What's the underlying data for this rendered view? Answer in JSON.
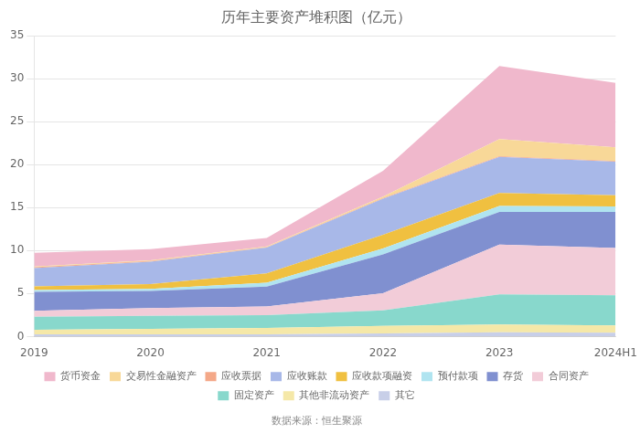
{
  "chart_data": {
    "type": "area",
    "title": "历年主要资产堆积图（亿元）",
    "annotations": [
      "数据来源：恒生聚源"
    ],
    "categories": [
      "2019",
      "2020",
      "2021",
      "2022",
      "2023",
      "2024H1"
    ],
    "series": [
      {
        "name": "其它",
        "color": "#c8cfe8",
        "values": [
          0.25,
          0.25,
          0.25,
          0.35,
          0.5,
          0.45
        ]
      },
      {
        "name": "其他非流动资产",
        "color": "#f5e8a8",
        "values": [
          0.55,
          0.65,
          0.75,
          0.9,
          0.9,
          0.85
        ]
      },
      {
        "name": "固定资产",
        "color": "#88d8cc",
        "values": [
          1.5,
          1.5,
          1.5,
          1.8,
          3.5,
          3.5
        ]
      },
      {
        "name": "合同资产",
        "color": "#f2ccd8",
        "values": [
          0.7,
          0.9,
          1.0,
          2.0,
          5.8,
          5.5
        ]
      },
      {
        "name": "存货",
        "color": "#8090d0",
        "values": [
          2.2,
          2.0,
          2.3,
          4.5,
          3.8,
          4.2
        ]
      },
      {
        "name": "预付款项",
        "color": "#b0e4f0",
        "values": [
          0.2,
          0.25,
          0.45,
          0.7,
          0.7,
          0.65
        ]
      },
      {
        "name": "应收款项融资",
        "color": "#f0c040",
        "values": [
          0.45,
          0.55,
          1.1,
          1.6,
          1.5,
          1.3
        ]
      },
      {
        "name": "应收账款",
        "color": "#a8b8e8",
        "values": [
          2.1,
          2.6,
          3.0,
          4.2,
          4.2,
          3.9
        ]
      },
      {
        "name": "应收票据",
        "color": "#f4a888",
        "values": [
          0.12,
          0.08,
          0.05,
          0.08,
          0.08,
          0.08
        ]
      },
      {
        "name": "交易性金融资产",
        "color": "#f8d898",
        "values": [
          0.08,
          0.08,
          0.08,
          0.15,
          2.0,
          1.6
        ]
      },
      {
        "name": "货币资金",
        "color": "#f0b8cc",
        "values": [
          1.6,
          1.3,
          1.0,
          3.0,
          8.5,
          7.5
        ]
      }
    ],
    "stacked": true,
    "ylim": [
      0,
      35
    ],
    "yticks": [
      0,
      5,
      10,
      15,
      20,
      25,
      30,
      35
    ],
    "grid": true,
    "legend": "bottom"
  }
}
